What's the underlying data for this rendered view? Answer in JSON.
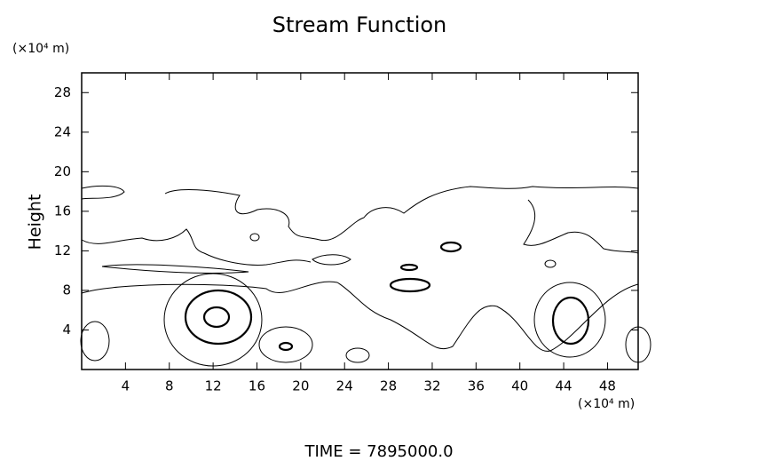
{
  "chart_data": {
    "type": "contour",
    "title": "Stream Function",
    "ylabel": "Height",
    "y_unit_label": "(×10⁴ m)",
    "x_unit_label": "(×10⁴ m)",
    "footer": "TIME  =  7895000.0",
    "xlim": [
      0,
      50.8
    ],
    "ylim": [
      0,
      30
    ],
    "xticks": [
      4,
      8,
      12,
      16,
      20,
      24,
      28,
      32,
      36,
      40,
      44,
      48
    ],
    "yticks": [
      4,
      8,
      12,
      16,
      20,
      24,
      28
    ]
  }
}
